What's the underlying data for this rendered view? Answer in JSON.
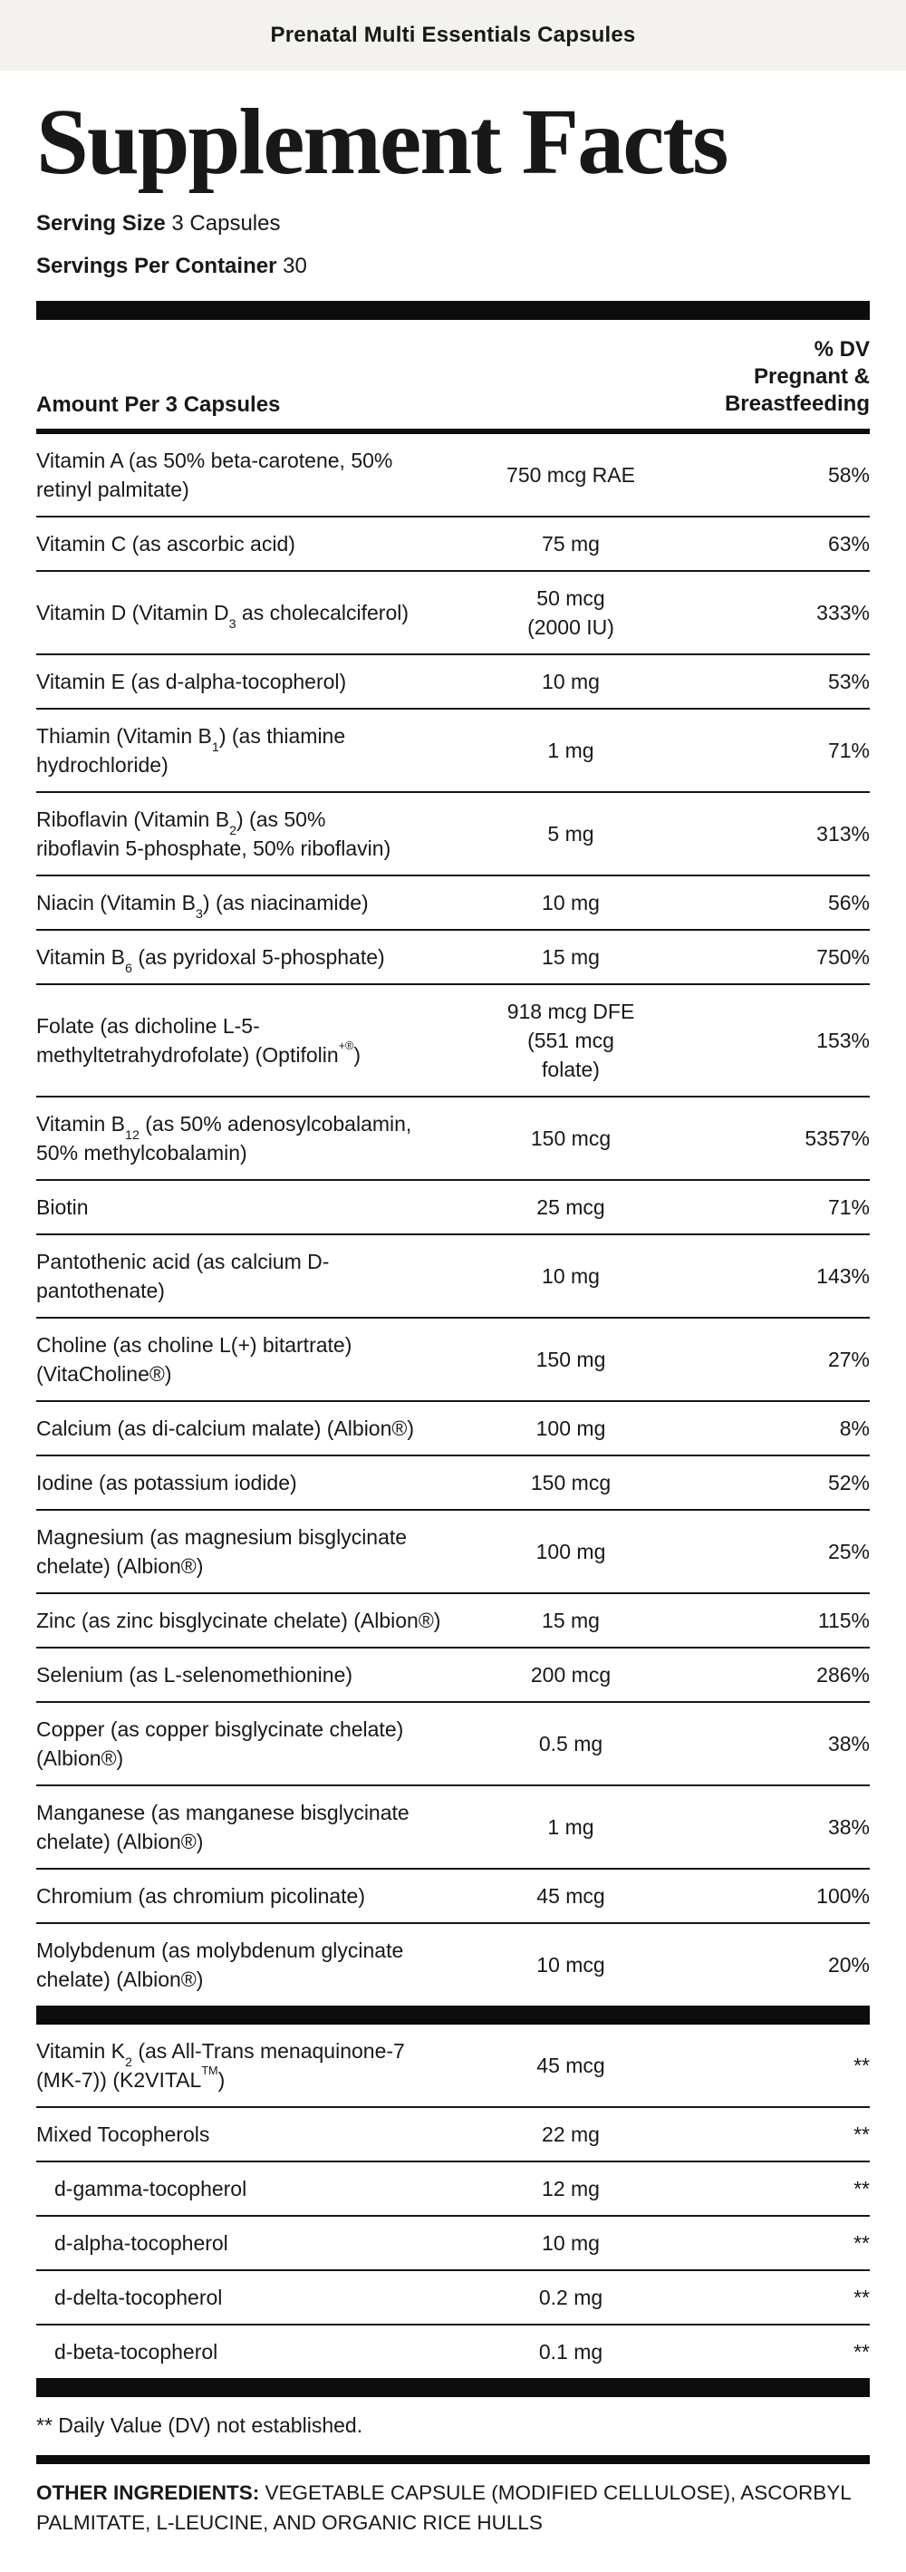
{
  "colors": {
    "banner_bg": "#f3f2ef",
    "text": "#181818",
    "bar": "#0d0d0d"
  },
  "banner": {
    "title": "Prenatal Multi Essentials Capsules"
  },
  "panel": {
    "title": "Supplement Facts",
    "serving_size_label": "Serving Size",
    "serving_size_value": "3 Capsules",
    "servings_per_container_label": "Servings Per Container",
    "servings_per_container_value": "30",
    "amount_header": "Amount Per 3 Capsules",
    "dv_header": "% DV\nPregnant &\nBreastfeeding",
    "rows": [
      {
        "name": "Vitamin A (as 50% beta-carotene, 50%\nretinyl palmitate)",
        "amount": "750 mcg RAE",
        "dv": "58%",
        "indent": false
      },
      {
        "name": "Vitamin C (as ascorbic acid)",
        "amount": "75 mg",
        "dv": "63%",
        "indent": false
      },
      {
        "name": "Vitamin D (Vitamin D[sub]3[/sub] as cholecalciferol)",
        "amount": "50 mcg\n(2000 IU)",
        "dv": "333%",
        "indent": false
      },
      {
        "name": "Vitamin E (as d-alpha-tocopherol)",
        "amount": "10 mg",
        "dv": "53%",
        "indent": false
      },
      {
        "name": "Thiamin (Vitamin B[sub]1[/sub]) (as thiamine\nhydrochloride)",
        "amount": "1 mg",
        "dv": "71%",
        "indent": false
      },
      {
        "name": "Riboflavin (Vitamin B[sub]2[/sub]) (as 50%\nriboflavin 5-phosphate, 50% riboflavin)",
        "amount": "5 mg",
        "dv": "313%",
        "indent": false
      },
      {
        "name": "Niacin (Vitamin B[sub]3[/sub]) (as niacinamide)",
        "amount": "10 mg",
        "dv": "56%",
        "indent": false
      },
      {
        "name": "Vitamin B[sub]6[/sub] (as pyridoxal 5-phosphate)",
        "amount": "15 mg",
        "dv": "750%",
        "indent": false
      },
      {
        "name": "Folate (as dicholine L-5-\nmethyltetrahydrofolate) (Optifolin[sup]+®[/sup])",
        "amount": "918 mcg DFE\n(551 mcg\nfolate)",
        "dv": "153%",
        "indent": false
      },
      {
        "name": "Vitamin B[sub]12[/sub] (as 50% adenosylcobalamin,\n50% methylcobalamin)",
        "amount": "150 mcg",
        "dv": "5357%",
        "indent": false
      },
      {
        "name": "Biotin",
        "amount": "25 mcg",
        "dv": "71%",
        "indent": false
      },
      {
        "name": "Pantothenic acid (as calcium D-\npantothenate)",
        "amount": "10 mg",
        "dv": "143%",
        "indent": false
      },
      {
        "name": "Choline (as choline L(+) bitartrate)\n(VitaCholine®)",
        "amount": "150 mg",
        "dv": "27%",
        "indent": false
      },
      {
        "name": "Calcium (as di-calcium malate) (Albion®)",
        "amount": "100 mg",
        "dv": "8%",
        "indent": false
      },
      {
        "name": "Iodine (as potassium iodide)",
        "amount": "150 mcg",
        "dv": "52%",
        "indent": false
      },
      {
        "name": "Magnesium (as magnesium bisglycinate\nchelate) (Albion®)",
        "amount": "100 mg",
        "dv": "25%",
        "indent": false
      },
      {
        "name": "Zinc (as zinc bisglycinate chelate) (Albion®)",
        "amount": "15 mg",
        "dv": "115%",
        "indent": false
      },
      {
        "name": "Selenium (as L-selenomethionine)",
        "amount": "200 mcg",
        "dv": "286%",
        "indent": false
      },
      {
        "name": "Copper (as copper bisglycinate chelate)\n(Albion®)",
        "amount": "0.5 mg",
        "dv": "38%",
        "indent": false
      },
      {
        "name": "Manganese (as manganese bisglycinate\nchelate) (Albion®)",
        "amount": "1 mg",
        "dv": "38%",
        "indent": false
      },
      {
        "name": "Chromium (as chromium picolinate)",
        "amount": "45 mcg",
        "dv": "100%",
        "indent": false
      },
      {
        "name": "Molybdenum (as molybdenum glycinate\nchelate) (Albion®)",
        "amount": "10 mcg",
        "dv": "20%",
        "indent": false
      }
    ],
    "rows_no_dv": [
      {
        "name": "Vitamin K[sub]2[/sub] (as All-Trans menaquinone-7\n(MK-7)) (K2VITAL[sup]TM[/sup])",
        "amount": "45 mcg",
        "dv": "**",
        "indent": false
      },
      {
        "name": "Mixed Tocopherols",
        "amount": "22 mg",
        "dv": "**",
        "indent": false
      },
      {
        "name": "d-gamma-tocopherol",
        "amount": "12 mg",
        "dv": "**",
        "indent": true
      },
      {
        "name": "d-alpha-tocopherol",
        "amount": "10 mg",
        "dv": "**",
        "indent": true
      },
      {
        "name": "d-delta-tocopherol",
        "amount": "0.2 mg",
        "dv": "**",
        "indent": true
      },
      {
        "name": "d-beta-tocopherol",
        "amount": "0.1 mg",
        "dv": "**",
        "indent": true
      }
    ],
    "footnote": "** Daily Value (DV) not established.",
    "other_ingredients_label": "OTHER INGREDIENTS:",
    "other_ingredients_value": "VEGETABLE CAPSULE (MODIFIED CELLULOSE), ASCORBYL PALMITATE, L-LEUCINE, AND ORGANIC RICE HULLS"
  }
}
